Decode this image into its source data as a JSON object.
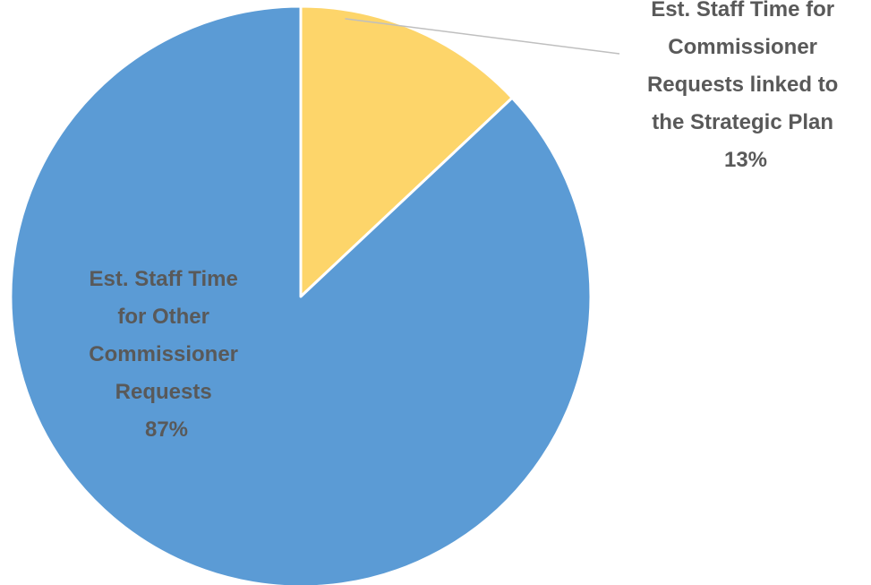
{
  "chart_data": {
    "type": "pie",
    "slices": [
      {
        "label_lines": [
          "Est. Staff Time for",
          "Commissioner",
          "Requests linked to",
          "the Strategic Plan"
        ],
        "percent_label": "13%",
        "value": 13,
        "color": "#FDD56A"
      },
      {
        "label_lines": [
          "Est. Staff Time",
          "for Other",
          "Commissioner",
          "Requests"
        ],
        "percent_label": "87%",
        "value": 87,
        "color": "#5B9BD5"
      }
    ],
    "start_angle_deg": 0,
    "direction": "clockwise",
    "title": "",
    "legend": "none",
    "slice_border_color": "#ffffff",
    "leader_line_color": "#bfbfbf",
    "label_color": "#595959"
  }
}
